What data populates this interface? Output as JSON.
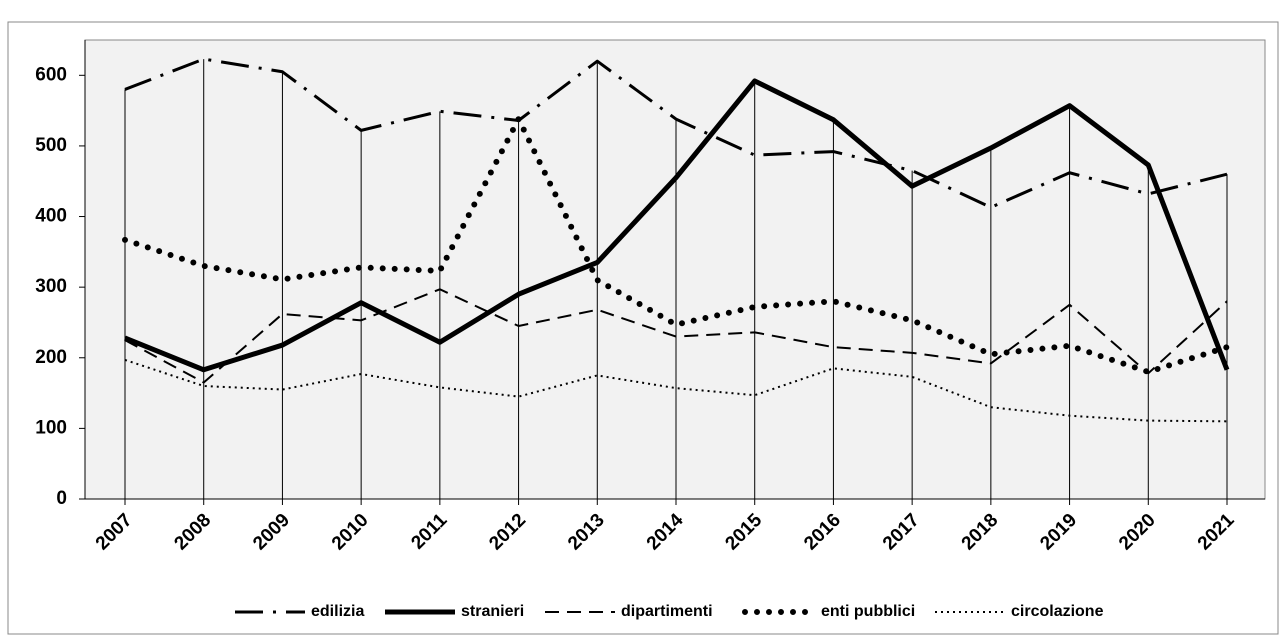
{
  "chart_data": {
    "type": "line",
    "categories": [
      "2007",
      "2008",
      "2009",
      "2010",
      "2011",
      "2012",
      "2013",
      "2014",
      "2015",
      "2016",
      "2017",
      "2018",
      "2019",
      "2020",
      "2021"
    ],
    "series": [
      {
        "name": "edilizia",
        "color": "#000000",
        "line_style": "dash-dot",
        "values": [
          580,
          623,
          605,
          522,
          549,
          536,
          620,
          538,
          487,
          492,
          465,
          413,
          462,
          432,
          460
        ]
      },
      {
        "name": "stranieri",
        "color": "#000000",
        "line_style": "solid",
        "values": [
          228,
          183,
          218,
          278,
          222,
          290,
          335,
          455,
          592,
          537,
          443,
          497,
          557,
          473,
          183
        ]
      },
      {
        "name": "dipartimenti",
        "color": "#000000",
        "line_style": "dash",
        "values": [
          225,
          165,
          262,
          253,
          297,
          245,
          268,
          230,
          236,
          215,
          207,
          192,
          275,
          178,
          280
        ]
      },
      {
        "name": "enti pubblici",
        "color": "#000000",
        "line_style": "round-dot",
        "values": [
          367,
          330,
          311,
          328,
          323,
          538,
          310,
          247,
          272,
          280,
          253,
          205,
          217,
          180,
          215
        ]
      },
      {
        "name": "circolazione",
        "color": "#000000",
        "line_style": "dot",
        "values": [
          197,
          160,
          155,
          177,
          158,
          145,
          175,
          157,
          147,
          185,
          173,
          130,
          118,
          111,
          110
        ]
      }
    ],
    "ylim": [
      0,
      650
    ],
    "yticks": [
      0,
      100,
      200,
      300,
      400,
      500,
      600
    ],
    "drop_lines": true,
    "legend": "bottom"
  }
}
